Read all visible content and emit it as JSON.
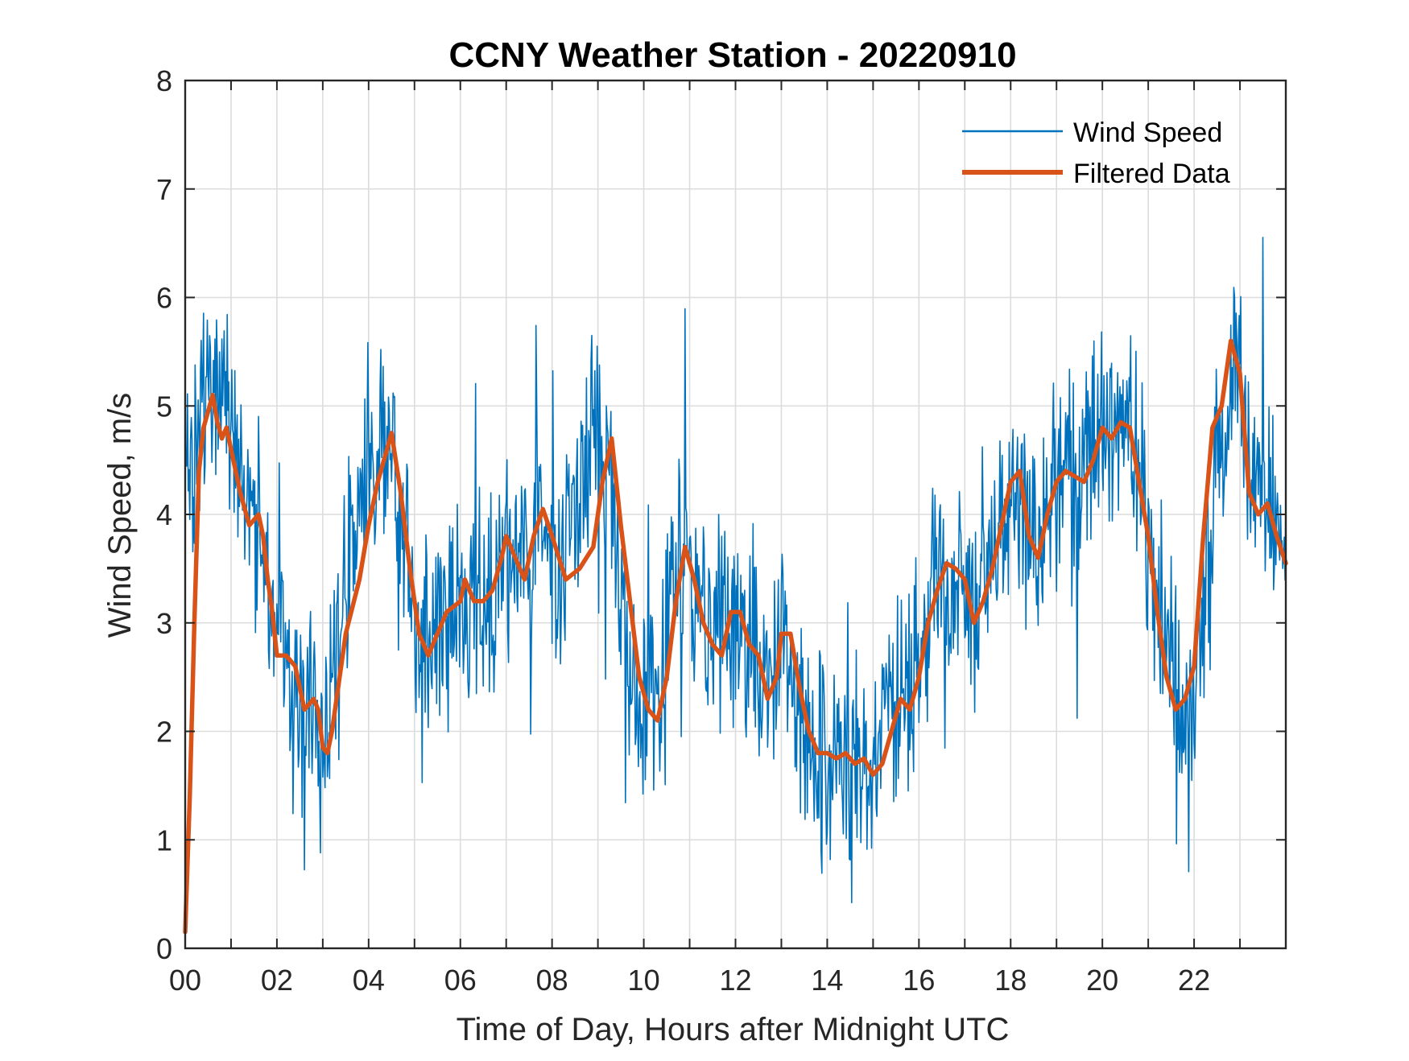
{
  "chart_data": {
    "type": "line",
    "title": "CCNY Weather Station - 20220910",
    "xlabel": "Time of Day, Hours after Midnight UTC",
    "ylabel": "Wind Speed, m/s",
    "xlim": [
      0,
      24
    ],
    "ylim": [
      0,
      8
    ],
    "grid": true,
    "legend_location": "top-right",
    "x_ticks": [
      0,
      2,
      4,
      6,
      8,
      10,
      12,
      14,
      16,
      18,
      20,
      22
    ],
    "x_tick_labels": [
      "00",
      "02",
      "04",
      "06",
      "08",
      "10",
      "12",
      "14",
      "16",
      "18",
      "20",
      "22"
    ],
    "x_minor_grid": [
      1,
      3,
      5,
      7,
      9,
      11,
      13,
      15,
      17,
      19,
      21,
      23
    ],
    "y_ticks": [
      0,
      1,
      2,
      3,
      4,
      5,
      6,
      7,
      8
    ],
    "y_tick_labels": [
      "0",
      "1",
      "2",
      "3",
      "4",
      "5",
      "6",
      "7",
      "8"
    ],
    "series": [
      {
        "name": "Wind Speed",
        "color": "#0072BD",
        "style": "raw",
        "x": [
          0,
          0.25,
          0.5,
          0.75,
          1,
          1.25,
          1.5,
          1.75,
          2,
          2.25,
          2.5,
          2.75,
          3,
          3.25,
          3.5,
          3.75,
          4,
          4.25,
          4.5,
          4.75,
          5,
          5.25,
          5.5,
          5.75,
          6,
          6.25,
          6.5,
          6.75,
          7,
          7.25,
          7.5,
          7.75,
          8,
          8.25,
          8.5,
          8.75,
          9,
          9.25,
          9.5,
          9.75,
          10,
          10.25,
          10.5,
          10.75,
          11,
          11.25,
          11.5,
          11.75,
          12,
          12.25,
          12.5,
          12.75,
          13,
          13.25,
          13.5,
          13.75,
          14,
          14.25,
          14.5,
          14.75,
          15,
          15.25,
          15.5,
          15.75,
          16,
          16.25,
          16.5,
          16.75,
          17,
          17.25,
          17.5,
          17.75,
          18,
          18.25,
          18.5,
          18.75,
          19,
          19.25,
          19.5,
          19.75,
          20,
          20.25,
          20.5,
          20.75,
          21,
          21.25,
          21.5,
          21.75,
          22,
          22.25,
          22.5,
          22.75,
          23,
          23.25,
          23.5,
          23.75,
          24
        ],
        "y": [
          4.4,
          4.6,
          5.3,
          5.1,
          4.8,
          4.3,
          4.0,
          3.7,
          2.9,
          2.6,
          2.4,
          2.2,
          1.9,
          2.6,
          3.3,
          3.7,
          4.3,
          4.6,
          4.6,
          3.7,
          2.9,
          2.7,
          2.9,
          3.2,
          3.3,
          3.2,
          3.3,
          3.3,
          3.7,
          3.5,
          3.8,
          3.9,
          3.5,
          3.5,
          3.8,
          4.5,
          4.7,
          4.0,
          3.3,
          2.4,
          2.2,
          2.2,
          3.0,
          3.6,
          3.4,
          3.0,
          2.8,
          3.1,
          3.1,
          2.9,
          2.6,
          2.4,
          2.7,
          2.5,
          2.0,
          1.9,
          1.8,
          1.7,
          1.8,
          1.6,
          1.8,
          2.1,
          2.2,
          2.4,
          2.7,
          3.3,
          3.5,
          3.5,
          3.3,
          3.0,
          3.4,
          3.8,
          4.3,
          4.1,
          3.8,
          4.1,
          4.3,
          4.4,
          4.4,
          4.5,
          4.8,
          4.8,
          4.8,
          4.5,
          3.8,
          3.2,
          2.6,
          2.2,
          2.4,
          3.5,
          4.6,
          5.1,
          5.3,
          4.4,
          4.1,
          3.9,
          3.6
        ]
      },
      {
        "name": "Filtered Data",
        "color": "#D95319",
        "style": "smooth",
        "x": [
          0,
          0.1,
          0.2,
          0.3,
          0.4,
          0.5,
          0.6,
          0.7,
          0.8,
          0.9,
          1.0,
          1.2,
          1.4,
          1.6,
          1.7,
          1.8,
          1.9,
          2.0,
          2.2,
          2.4,
          2.6,
          2.8,
          2.9,
          3.0,
          3.1,
          3.2,
          3.5,
          3.8,
          4.0,
          4.2,
          4.4,
          4.5,
          4.7,
          4.9,
          5.1,
          5.3,
          5.5,
          5.7,
          6.0,
          6.1,
          6.3,
          6.5,
          6.7,
          6.9,
          7.0,
          7.2,
          7.4,
          7.6,
          7.8,
          8.0,
          8.3,
          8.6,
          8.9,
          9.1,
          9.3,
          9.5,
          9.7,
          9.9,
          10.1,
          10.3,
          10.5,
          10.7,
          10.9,
          11.1,
          11.3,
          11.5,
          11.7,
          11.9,
          12.1,
          12.3,
          12.5,
          12.7,
          12.9,
          13.0,
          13.2,
          13.4,
          13.6,
          13.8,
          14.0,
          14.2,
          14.4,
          14.6,
          14.8,
          15.0,
          15.2,
          15.4,
          15.6,
          15.8,
          16.0,
          16.2,
          16.4,
          16.6,
          16.8,
          17.0,
          17.2,
          17.4,
          17.6,
          17.8,
          18.0,
          18.2,
          18.4,
          18.6,
          18.8,
          19.0,
          19.2,
          19.4,
          19.6,
          19.8,
          20.0,
          20.2,
          20.4,
          20.6,
          20.8,
          21.0,
          21.2,
          21.4,
          21.6,
          21.8,
          22.0,
          22.2,
          22.4,
          22.6,
          22.8,
          23.0,
          23.2,
          23.4,
          23.6,
          23.8,
          24.0
        ],
        "y": [
          0.15,
          1.4,
          3.0,
          4.4,
          4.8,
          4.95,
          5.1,
          4.85,
          4.7,
          4.8,
          4.6,
          4.2,
          3.9,
          4.0,
          3.8,
          3.4,
          3.1,
          2.7,
          2.7,
          2.6,
          2.2,
          2.3,
          2.2,
          1.85,
          1.8,
          2.0,
          2.9,
          3.4,
          3.9,
          4.3,
          4.6,
          4.75,
          4.2,
          3.5,
          2.9,
          2.7,
          2.9,
          3.1,
          3.2,
          3.4,
          3.2,
          3.2,
          3.3,
          3.6,
          3.8,
          3.6,
          3.4,
          3.8,
          4.05,
          3.8,
          3.4,
          3.5,
          3.7,
          4.3,
          4.7,
          3.9,
          3.2,
          2.5,
          2.2,
          2.1,
          2.5,
          3.2,
          3.7,
          3.4,
          3.0,
          2.8,
          2.7,
          3.1,
          3.1,
          2.8,
          2.7,
          2.3,
          2.5,
          2.9,
          2.9,
          2.4,
          2.0,
          1.8,
          1.8,
          1.75,
          1.8,
          1.7,
          1.75,
          1.6,
          1.7,
          2.0,
          2.3,
          2.2,
          2.5,
          3.0,
          3.3,
          3.55,
          3.5,
          3.4,
          3.0,
          3.2,
          3.5,
          3.9,
          4.3,
          4.4,
          3.8,
          3.6,
          4.0,
          4.3,
          4.4,
          4.35,
          4.3,
          4.5,
          4.8,
          4.7,
          4.85,
          4.8,
          4.3,
          3.8,
          3.1,
          2.5,
          2.2,
          2.3,
          2.6,
          3.8,
          4.8,
          5.0,
          5.6,
          5.3,
          4.2,
          4.0,
          4.1,
          3.8,
          3.55
        ]
      }
    ]
  }
}
